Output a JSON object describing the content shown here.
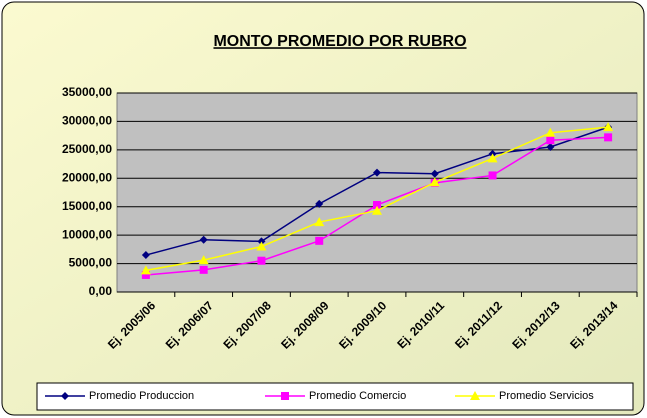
{
  "chart_data": {
    "type": "line",
    "title": "MONTO PROMEDIO POR RUBRO",
    "categories": [
      "Ej. 2005/06",
      "Ej. 2006/07",
      "Ej. 2007/08",
      "Ej. 2008/09",
      "Ej. 2009/10",
      "Ej. 2010/11",
      "Ej. 2011/12",
      "Ej. 2012/13",
      "Ej. 2013/14"
    ],
    "series": [
      {
        "name": "Promedio Produccion",
        "color": "#000080",
        "marker": "diamond",
        "values": [
          6500,
          9200,
          8900,
          15500,
          21000,
          20800,
          24300,
          25500,
          29000
        ]
      },
      {
        "name": "Promedio Comercio",
        "color": "#ff00ff",
        "marker": "square",
        "values": [
          3000,
          3900,
          5500,
          9000,
          15300,
          19200,
          20500,
          26700,
          27200
        ]
      },
      {
        "name": "Promedio Servicios",
        "color": "#ffff00",
        "marker": "triangle",
        "values": [
          3800,
          5600,
          8000,
          12300,
          14300,
          19300,
          23500,
          28000,
          29000
        ]
      }
    ],
    "ylim": [
      0,
      35000
    ],
    "yticks": [
      {
        "value": 0,
        "label": "0,00"
      },
      {
        "value": 5000,
        "label": "5000,00"
      },
      {
        "value": 10000,
        "label": "10000,00"
      },
      {
        "value": 15000,
        "label": "15000,00"
      },
      {
        "value": 20000,
        "label": "20000,00"
      },
      {
        "value": 25000,
        "label": "25000,00"
      },
      {
        "value": 30000,
        "label": "30000,00"
      },
      {
        "value": 35000,
        "label": "35000,00"
      }
    ],
    "grid": true,
    "legend": "bottom"
  }
}
